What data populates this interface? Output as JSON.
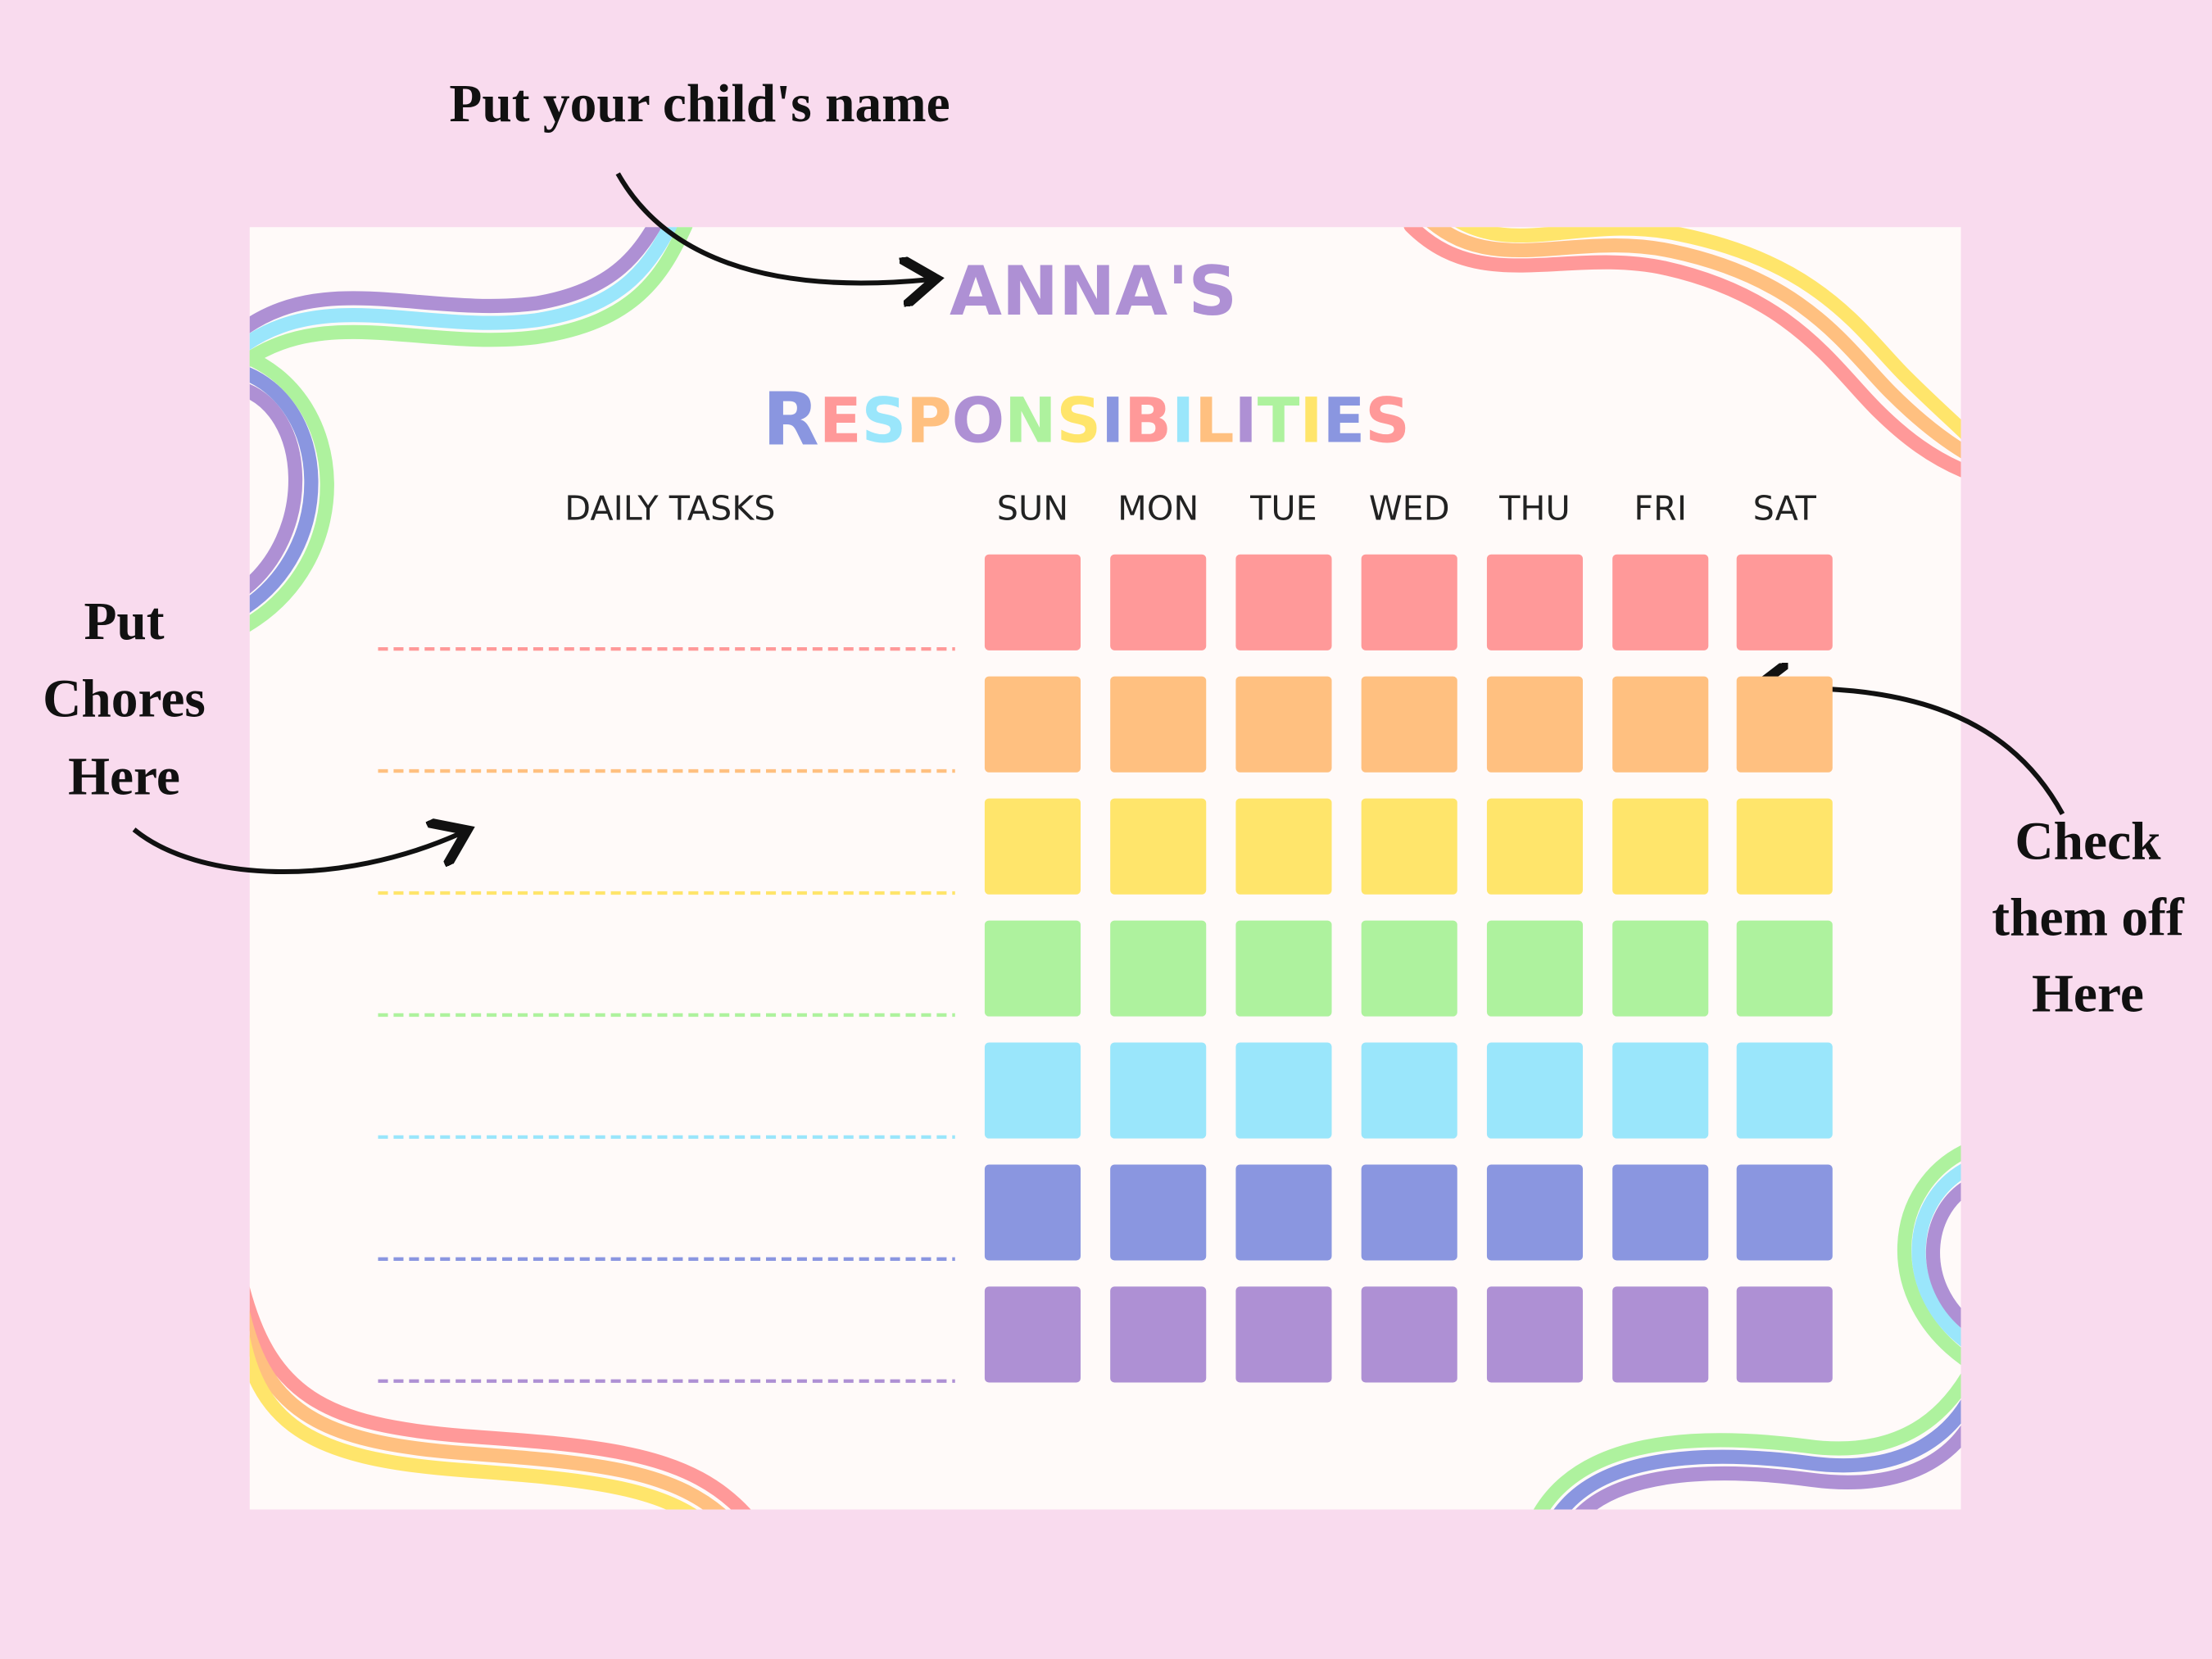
{
  "annotations": {
    "name_hint": "Put your child's name",
    "chores_hint": [
      "Put",
      "Chores",
      "Here"
    ],
    "check_hint": [
      "Check",
      "them off",
      "Here"
    ]
  },
  "chart": {
    "name": "ANNA'S",
    "title": "RESPONSIBILITIES",
    "tasks_header": "DAILY TASKS",
    "days": [
      "SUN",
      "MON",
      "TUE",
      "WED",
      "THU",
      "FRI",
      "SAT"
    ]
  }
}
